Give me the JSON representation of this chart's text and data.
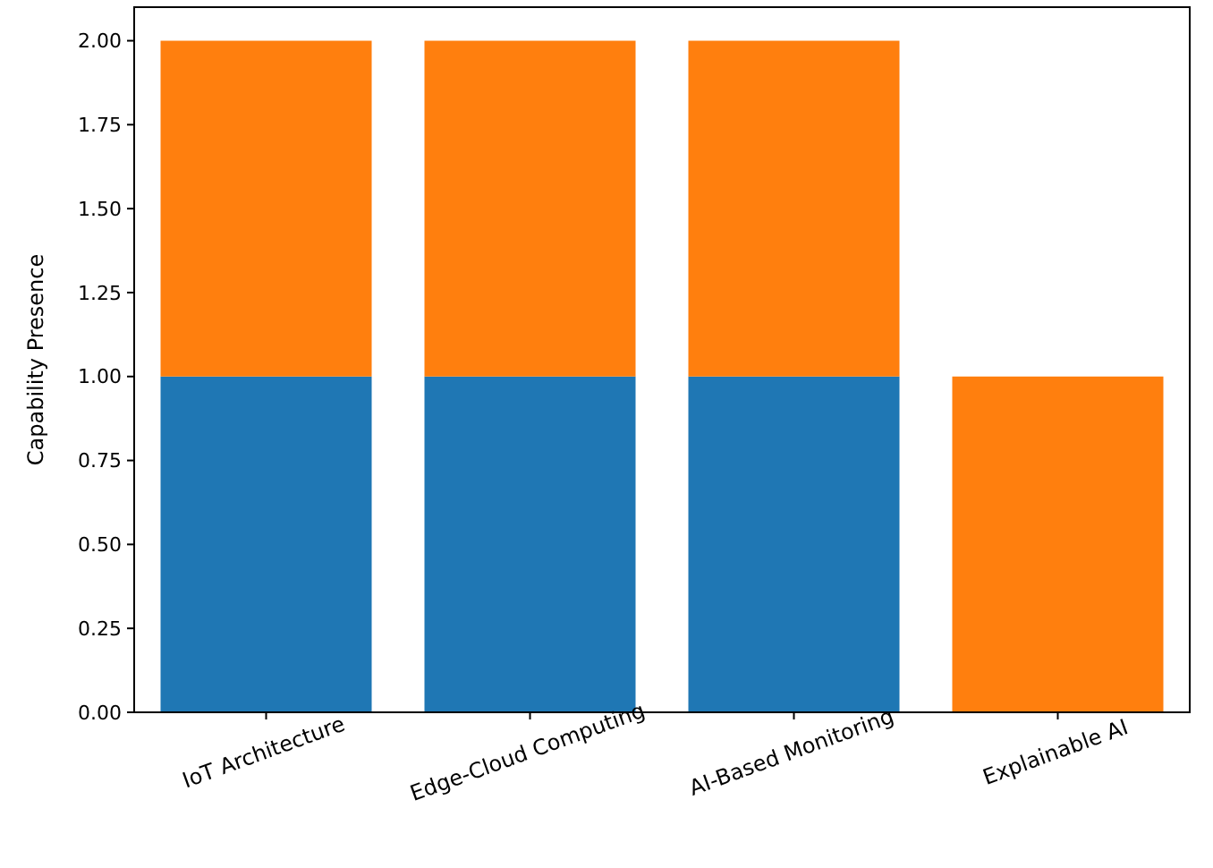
{
  "chart_data": {
    "type": "bar",
    "stacked": true,
    "ylabel": "Capability Presence",
    "categories": [
      "IoT Architecture",
      "Edge-Cloud Computing",
      "AI-Based Monitoring",
      "Explainable AI"
    ],
    "series": [
      {
        "color": "#1f77b4",
        "values": [
          1,
          1,
          1,
          0
        ]
      },
      {
        "color": "#ff7f0e",
        "values": [
          1,
          1,
          1,
          1
        ]
      }
    ],
    "ylim": [
      0,
      2.1
    ],
    "yticks": [
      {
        "value": 0,
        "label": "0.00"
      },
      {
        "value": 0.25,
        "label": "0.25"
      },
      {
        "value": 0.5,
        "label": "0.50"
      },
      {
        "value": 0.75,
        "label": "0.75"
      },
      {
        "value": 1,
        "label": "1.00"
      },
      {
        "value": 1.25,
        "label": "1.25"
      },
      {
        "value": 1.5,
        "label": "1.50"
      },
      {
        "value": 1.75,
        "label": "1.75"
      },
      {
        "value": 2,
        "label": "2.00"
      }
    ]
  }
}
